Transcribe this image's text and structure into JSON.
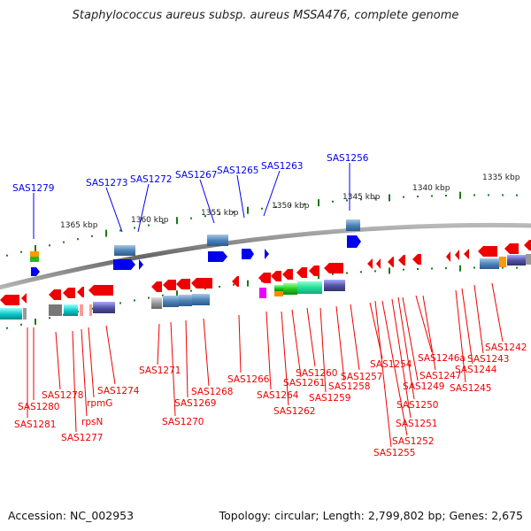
{
  "title": "Staphylococcus aureus subsp. aureus MSSA476, complete genome",
  "footer": {
    "accession": "Accession: NC_002953",
    "info": "Topology: circular; Length: 2,799,802 bp; Genes: 2,675"
  },
  "colors": {
    "forward_gene": "#0000ee",
    "reverse_gene": "#ee0000",
    "backbone": "#808080",
    "tick": "#1a7a1a",
    "cds_block": "#4f84b8"
  },
  "scale_labels": [
    "1365 kbp",
    "1360 kbp",
    "1355 kbp",
    "1350 kbp",
    "1345 kbp",
    "1340 kbp",
    "1335 kbp"
  ],
  "genes_top": [
    "SAS1279",
    "SAS1273",
    "SAS1272",
    "SAS1267",
    "SAS1265",
    "SAS1263",
    "SAS1256"
  ],
  "genes_bottom": [
    "SAS1281",
    "SAS1280",
    "SAS1278",
    "SAS1277",
    "rpsN",
    "rpmG",
    "SAS1274",
    "SAS1271",
    "SAS1270",
    "SAS1269",
    "SAS1268",
    "SAS1266",
    "SAS1264",
    "SAS1262",
    "SAS1261",
    "SAS1260",
    "SAS1259",
    "SAS1258",
    "SAS1257",
    "SAS1255",
    "SAS1254",
    "SAS1252",
    "SAS1251",
    "SAS1250",
    "SAS1249",
    "SAS1247",
    "SAS1246a",
    "SAS1245",
    "SAS1244",
    "SAS1243",
    "SAS1242"
  ]
}
